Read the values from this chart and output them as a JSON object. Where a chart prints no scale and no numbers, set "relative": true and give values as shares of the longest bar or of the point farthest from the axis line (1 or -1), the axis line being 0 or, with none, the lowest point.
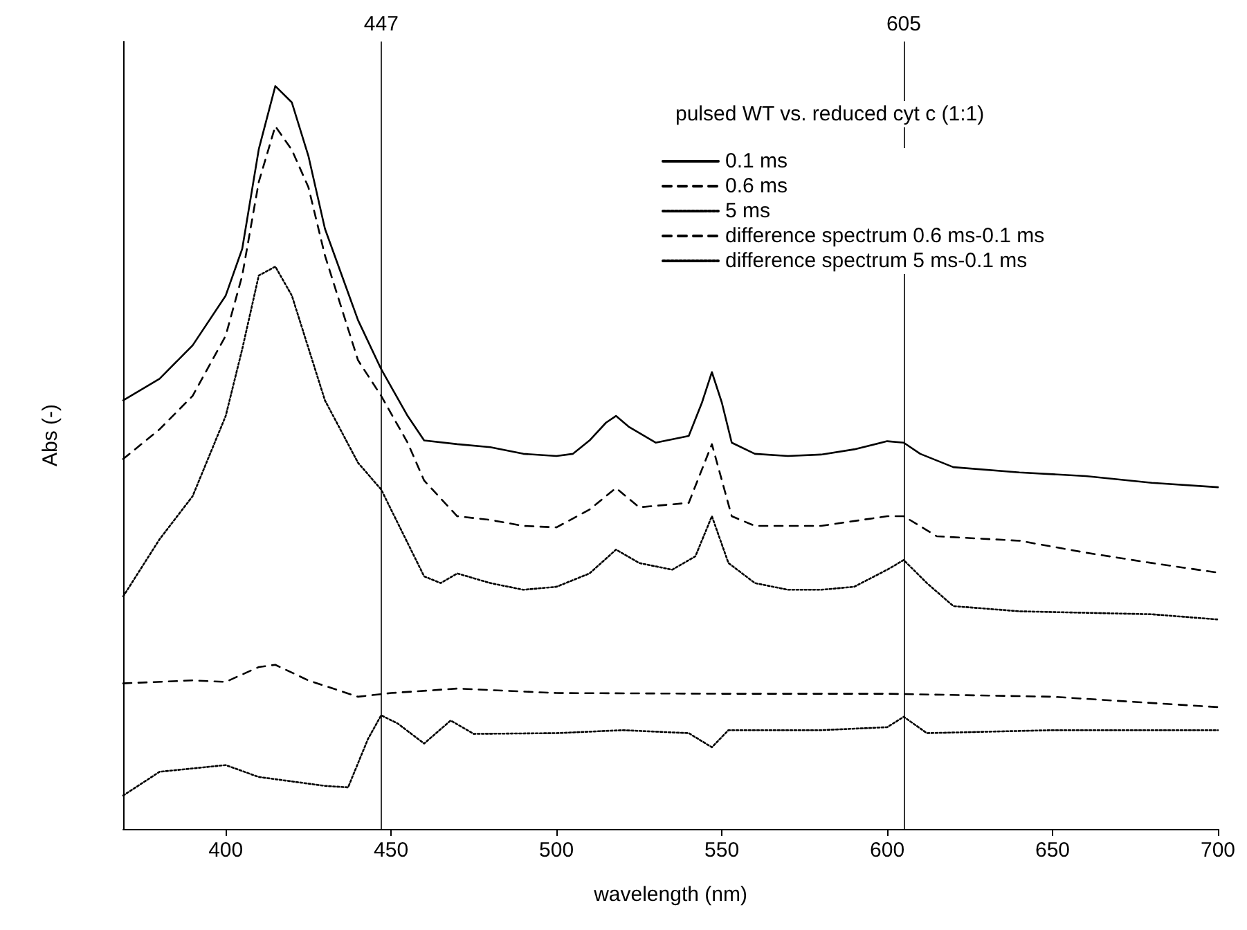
{
  "chart_data": {
    "type": "line",
    "relative": true,
    "xlabel": "wavelength (nm)",
    "ylabel": "Abs (-)",
    "legend_title": "pulsed WT vs. reduced cyt c (1:1)",
    "legend": "top right",
    "tick_labels": "x",
    "grid": false,
    "marker": "none",
    "xlim": [
      369,
      700
    ],
    "xticks": [
      400,
      450,
      500,
      550,
      600,
      650,
      700
    ],
    "series": [
      {
        "name": "0.1 ms",
        "color": "#000000",
        "line_style": "solid",
        "x": [
          369,
          380,
          390,
          400,
          405,
          410,
          415,
          420,
          425,
          430,
          440,
          447,
          455,
          460,
          470,
          480,
          490,
          500,
          505,
          510,
          515,
          518,
          522,
          530,
          540,
          544,
          547,
          550,
          553,
          560,
          570,
          580,
          590,
          600,
          605,
          610,
          620,
          640,
          660,
          680,
          700
        ],
        "values": [
          0.577,
          0.606,
          0.651,
          0.718,
          0.781,
          0.915,
          1.0,
          0.978,
          0.906,
          0.808,
          0.685,
          0.619,
          0.556,
          0.523,
          0.518,
          0.514,
          0.505,
          0.502,
          0.505,
          0.523,
          0.547,
          0.556,
          0.541,
          0.52,
          0.529,
          0.574,
          0.615,
          0.574,
          0.52,
          0.505,
          0.502,
          0.504,
          0.511,
          0.522,
          0.52,
          0.505,
          0.487,
          0.48,
          0.475,
          0.466,
          0.46
        ]
      },
      {
        "name": "0.6 ms",
        "color": "#000000",
        "line_style": "dashed",
        "x": [
          369,
          380,
          390,
          400,
          405,
          410,
          415,
          420,
          425,
          430,
          440,
          447,
          455,
          460,
          470,
          480,
          490,
          500,
          510,
          518,
          525,
          540,
          547,
          553,
          560,
          580,
          600,
          605,
          615,
          640,
          660,
          680,
          700
        ],
        "values": [
          0.498,
          0.538,
          0.583,
          0.664,
          0.745,
          0.871,
          0.946,
          0.914,
          0.864,
          0.772,
          0.631,
          0.583,
          0.52,
          0.469,
          0.421,
          0.416,
          0.408,
          0.406,
          0.43,
          0.459,
          0.433,
          0.439,
          0.518,
          0.421,
          0.408,
          0.408,
          0.421,
          0.421,
          0.394,
          0.388,
          0.372,
          0.358,
          0.345
        ]
      },
      {
        "name": "5 ms",
        "color": "#000000",
        "line_style": "dotted",
        "x": [
          369,
          380,
          390,
          400,
          405,
          410,
          415,
          420,
          430,
          440,
          447,
          455,
          460,
          465,
          470,
          480,
          490,
          500,
          510,
          518,
          525,
          535,
          542,
          547,
          552,
          560,
          570,
          580,
          590,
          600,
          605,
          612,
          620,
          640,
          660,
          680,
          700
        ],
        "values": [
          0.313,
          0.39,
          0.448,
          0.556,
          0.646,
          0.745,
          0.757,
          0.718,
          0.577,
          0.493,
          0.457,
          0.385,
          0.34,
          0.331,
          0.344,
          0.331,
          0.322,
          0.326,
          0.344,
          0.376,
          0.358,
          0.349,
          0.367,
          0.421,
          0.358,
          0.331,
          0.322,
          0.322,
          0.326,
          0.349,
          0.362,
          0.331,
          0.3,
          0.293,
          0.291,
          0.289,
          0.282
        ]
      },
      {
        "name": "difference spectrum 0.6 ms-0.1 ms",
        "color": "#000000",
        "line_style": "dashed",
        "x": [
          369,
          390,
          400,
          410,
          415,
          425,
          440,
          450,
          470,
          500,
          550,
          600,
          650,
          700
        ],
        "values": [
          0.196,
          0.2,
          0.198,
          0.218,
          0.221,
          0.2,
          0.178,
          0.183,
          0.189,
          0.183,
          0.182,
          0.182,
          0.178,
          0.164
        ]
      },
      {
        "name": "difference spectrum 5 ms-0.1 ms",
        "color": "#000000",
        "line_style": "dotted",
        "x": [
          369,
          380,
          400,
          410,
          430,
          437,
          443,
          447,
          452,
          460,
          468,
          475,
          500,
          520,
          540,
          547,
          552,
          580,
          600,
          605,
          612,
          650,
          700
        ],
        "values": [
          0.045,
          0.077,
          0.086,
          0.07,
          0.058,
          0.056,
          0.121,
          0.153,
          0.142,
          0.115,
          0.146,
          0.128,
          0.129,
          0.133,
          0.129,
          0.11,
          0.133,
          0.133,
          0.137,
          0.151,
          0.129,
          0.133,
          0.133
        ]
      }
    ],
    "ref_lines": [
      {
        "axis": "x",
        "value": 447,
        "label": "447",
        "color": "#000000"
      },
      {
        "axis": "x",
        "value": 605,
        "label": "605",
        "color": "#000000"
      }
    ]
  }
}
